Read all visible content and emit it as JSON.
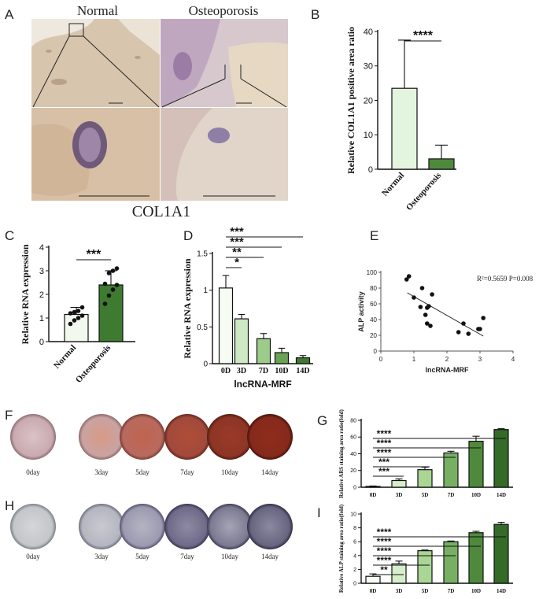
{
  "panel_labels": {
    "a": "A",
    "b": "B",
    "c": "C",
    "d": "D",
    "e": "E",
    "f": "F",
    "g": "G",
    "h": "H",
    "i": "I"
  },
  "panel_a": {
    "left_title": "Normal",
    "right_title": "Osteoporosis",
    "caption": "COL1A1"
  },
  "stain_labels": [
    "0day",
    "3day",
    "5day",
    "7day",
    "10day",
    "14day"
  ],
  "chart_data": [
    {
      "id": "B",
      "type": "bar",
      "categories": [
        "Normal",
        "Osteoporosis"
      ],
      "values": [
        23.5,
        3.0
      ],
      "errors": [
        14.0,
        4.0
      ],
      "ylabel": "Relative COL1A1 positive area ratio",
      "ylim": [
        0,
        40
      ],
      "yticks": [
        0,
        10,
        20,
        30,
        40
      ],
      "colors": [
        "#e4f5df",
        "#4f8a3c"
      ],
      "significance": [
        {
          "from": 0,
          "to": 1,
          "label": "****"
        }
      ]
    },
    {
      "id": "C",
      "type": "bar",
      "categories": [
        "Normal",
        "Osteoporosis"
      ],
      "values": [
        1.15,
        2.4
      ],
      "errors": [
        0.3,
        0.6
      ],
      "points": [
        [
          0.75,
          0.9,
          1.0,
          1.1,
          1.2,
          1.25,
          1.3,
          1.45
        ],
        [
          1.6,
          1.95,
          2.2,
          2.4,
          2.45,
          2.9,
          3.0,
          3.1
        ]
      ],
      "ylabel": "Relative RNA expression",
      "ylim": [
        0,
        4
      ],
      "yticks": [
        0,
        1,
        2,
        3,
        4
      ],
      "colors": [
        "#f1f8ee",
        "#3e7a30"
      ],
      "significance": [
        {
          "from": 0,
          "to": 1,
          "label": "***"
        }
      ]
    },
    {
      "id": "D",
      "type": "bar",
      "categories": [
        "0D",
        "3D",
        "7D",
        "10D",
        "14D"
      ],
      "values": [
        1.03,
        0.61,
        0.34,
        0.15,
        0.08
      ],
      "errors": [
        0.17,
        0.06,
        0.07,
        0.06,
        0.03
      ],
      "xlabel": "lncRNA-MRF",
      "ylabel": "Relative RNA expression",
      "ylim": [
        0,
        1.5
      ],
      "yticks": [
        0.0,
        0.5,
        1.0,
        1.5
      ],
      "colors": [
        "#f6fbf3",
        "#cde8c2",
        "#9ccb8a",
        "#6aa356",
        "#3e7a30"
      ],
      "significance": [
        {
          "from": 0,
          "to": 1,
          "label": "*"
        },
        {
          "from": 0,
          "to": 2,
          "label": "**"
        },
        {
          "from": 0,
          "to": 3,
          "label": "***"
        },
        {
          "from": 0,
          "to": 4,
          "label": "***"
        }
      ]
    },
    {
      "id": "E",
      "type": "scatter",
      "x": [
        0.78,
        0.85,
        1.0,
        1.2,
        1.25,
        1.35,
        1.45,
        1.4,
        1.4,
        1.5,
        1.55,
        2.35,
        2.5,
        2.65,
        2.95,
        3.0,
        3.1
      ],
      "y": [
        91,
        95,
        68,
        56,
        80,
        46,
        57,
        35,
        55,
        32,
        72,
        24,
        35,
        22,
        28,
        28,
        42
      ],
      "fit": {
        "x": [
          0.8,
          3.1
        ],
        "y": [
          74,
          19
        ]
      },
      "annotation": "R²=0.5659 P=0.008",
      "xlabel": "lncRNA-MRF",
      "ylabel": "ALP activity",
      "xlim": [
        0,
        4
      ],
      "ylim": [
        0,
        100
      ],
      "xticks": [
        0,
        1,
        2,
        3,
        4
      ],
      "yticks": [
        0,
        20,
        40,
        60,
        80,
        100
      ]
    },
    {
      "id": "G",
      "type": "bar",
      "categories": [
        "0D",
        "3D",
        "5D",
        "7D",
        "10D",
        "14D"
      ],
      "values": [
        1,
        8,
        21,
        41,
        55,
        69
      ],
      "errors": [
        0.5,
        2,
        3,
        2,
        6,
        1
      ],
      "ylabel": "Relative ARS staining area ratio(fold)",
      "ylim": [
        0,
        80
      ],
      "yticks": [
        0,
        20,
        40,
        60,
        80
      ],
      "colors": [
        "#f6fbf3",
        "#d6eecb",
        "#a9d595",
        "#78b063",
        "#4f8a3c",
        "#336b27"
      ],
      "significance": [
        {
          "from": 0,
          "to": 1,
          "label": "***"
        },
        {
          "from": 0,
          "to": 2,
          "label": "***"
        },
        {
          "from": 0,
          "to": 3,
          "label": "****"
        },
        {
          "from": 0,
          "to": 4,
          "label": "****"
        },
        {
          "from": 0,
          "to": 5,
          "label": "****"
        }
      ]
    },
    {
      "id": "I",
      "type": "bar",
      "categories": [
        "0D",
        "3D",
        "5D",
        "7D",
        "10D",
        "14D"
      ],
      "values": [
        1.0,
        2.8,
        4.7,
        6.0,
        7.3,
        8.5
      ],
      "errors": [
        0.35,
        0.4,
        0.1,
        0.1,
        0.2,
        0.3
      ],
      "ylabel": "Relative ALP staining area ratio(fold)",
      "ylim": [
        0,
        10
      ],
      "yticks": [
        0,
        2,
        4,
        6,
        8,
        10
      ],
      "colors": [
        "#f6fbf3",
        "#d6eecb",
        "#a9d595",
        "#78b063",
        "#4f8a3c",
        "#336b27"
      ],
      "significance": [
        {
          "from": 0,
          "to": 1,
          "label": "**"
        },
        {
          "from": 0,
          "to": 2,
          "label": "****"
        },
        {
          "from": 0,
          "to": 3,
          "label": "****"
        },
        {
          "from": 0,
          "to": 4,
          "label": "****"
        },
        {
          "from": 0,
          "to": 5,
          "label": "****"
        }
      ]
    }
  ]
}
